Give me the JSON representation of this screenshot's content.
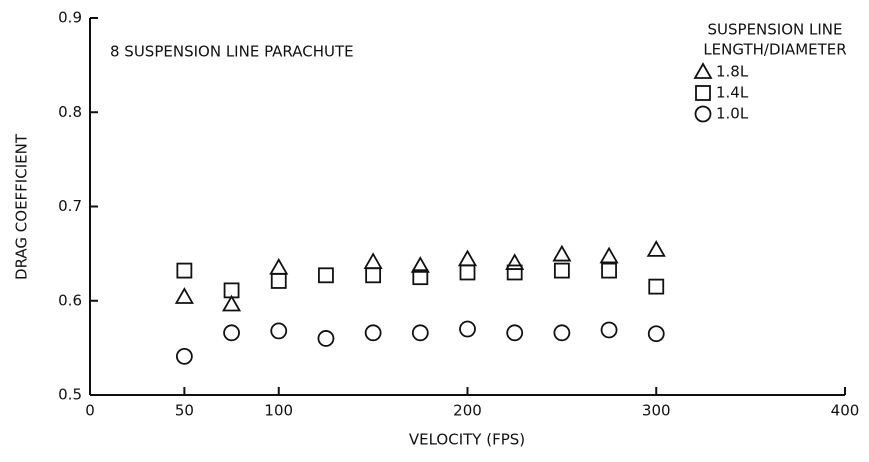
{
  "chart_data": {
    "type": "scatter",
    "annotation": "8 SUSPENSION LINE PARACHUTE",
    "x_label": "VELOCITY (FPS)",
    "y_label": "DRAG COEFFICIENT",
    "legend_title": [
      "SUSPENSION LINE",
      "LENGTH/DIAMETER"
    ],
    "legend": "top-right",
    "xlim": [
      0,
      400
    ],
    "xticks": [
      0,
      50,
      100,
      200,
      300,
      400
    ],
    "ylim": [
      0.5,
      0.9
    ],
    "yticks": [
      0.5,
      0.6,
      0.7,
      0.8,
      0.9
    ],
    "series": [
      {
        "name": "1.8L",
        "marker": "triangle",
        "color": "#111111",
        "x": [
          50,
          75,
          100,
          150,
          175,
          200,
          225,
          250,
          275,
          300
        ],
        "values": [
          0.604,
          0.596,
          0.635,
          0.641,
          0.637,
          0.644,
          0.64,
          0.649,
          0.647,
          0.654
        ]
      },
      {
        "name": "1.4L",
        "marker": "square",
        "color": "#111111",
        "x": [
          50,
          75,
          100,
          125,
          150,
          175,
          200,
          225,
          250,
          275,
          300
        ],
        "values": [
          0.632,
          0.611,
          0.621,
          0.627,
          0.627,
          0.625,
          0.63,
          0.63,
          0.632,
          0.632,
          0.615
        ]
      },
      {
        "name": "1.0L",
        "marker": "circle",
        "color": "#111111",
        "x": [
          50,
          75,
          100,
          125,
          150,
          175,
          200,
          225,
          250,
          275,
          300
        ],
        "values": [
          0.541,
          0.566,
          0.568,
          0.56,
          0.566,
          0.566,
          0.57,
          0.566,
          0.566,
          0.569,
          0.565
        ]
      }
    ]
  }
}
